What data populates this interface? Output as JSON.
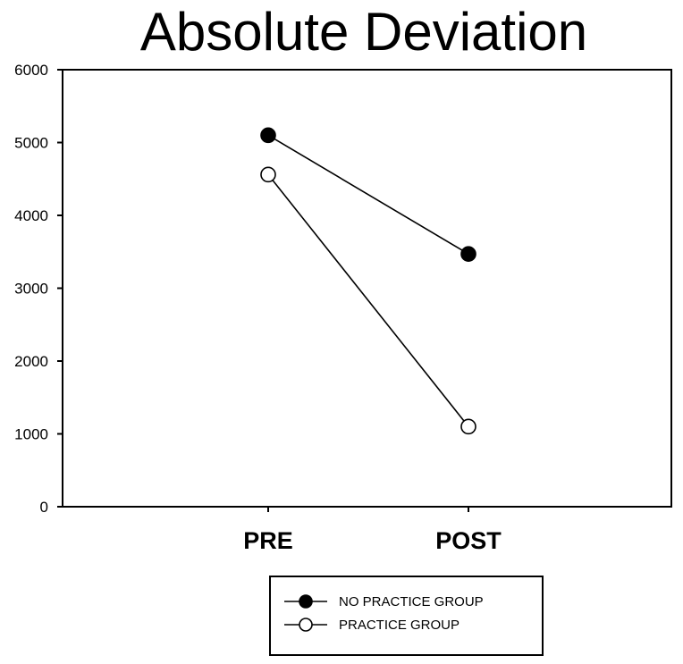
{
  "chart_data": {
    "type": "line",
    "title": "Absolute Deviation",
    "xlabel": "",
    "ylabel": "",
    "categories": [
      "PRE",
      "POST"
    ],
    "ylim": [
      0,
      6000
    ],
    "yticks": [
      0,
      1000,
      2000,
      3000,
      4000,
      5000,
      6000
    ],
    "grid": false,
    "legend_position": "bottom",
    "series": [
      {
        "name": "NO PRACTICE GROUP",
        "values": [
          5100,
          3470
        ],
        "marker": "filled-circle",
        "color": "#000000"
      },
      {
        "name": "PRACTICE GROUP",
        "values": [
          4560,
          1100
        ],
        "marker": "open-circle",
        "color": "#000000"
      }
    ]
  }
}
